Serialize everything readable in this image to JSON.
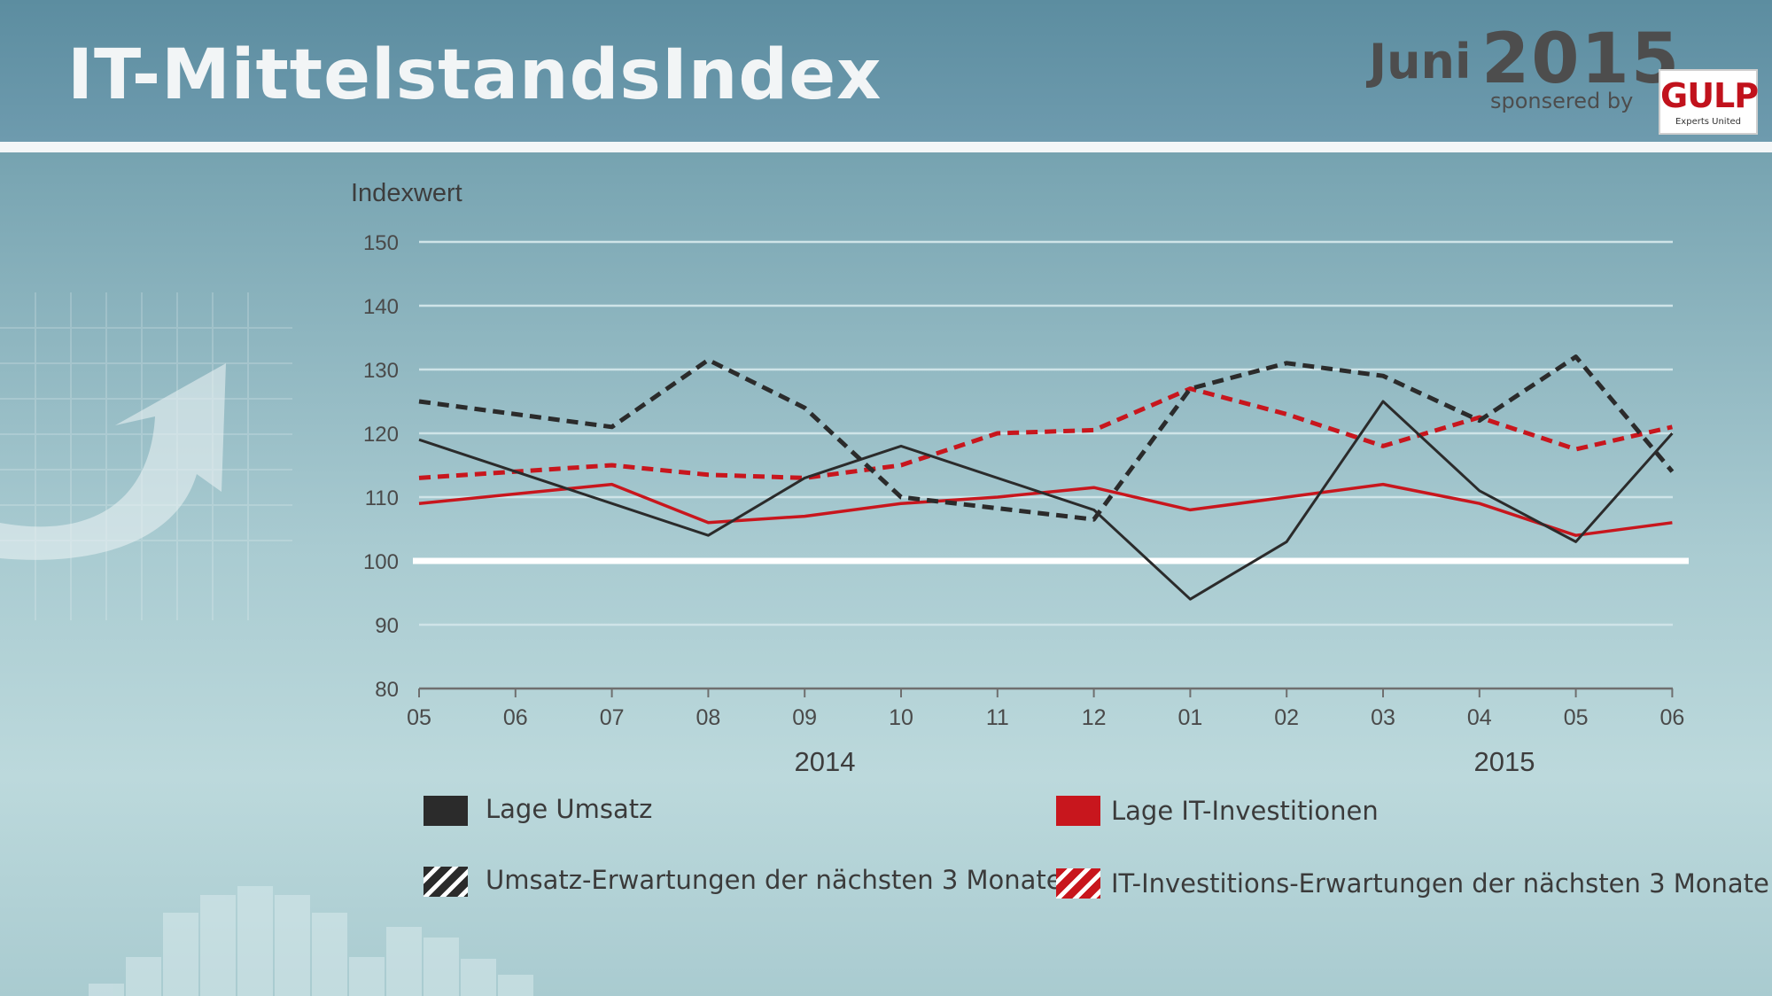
{
  "header": {
    "title": "IT-MittelstandsIndex",
    "month": "Juni",
    "year": "2015",
    "sponsored": "sponsered by",
    "logo_text": "GULP",
    "logo_tagline": "Experts United"
  },
  "colors": {
    "black_series": "#2b2b2b",
    "red_series": "#c8161d",
    "baseline": "#ffffff"
  },
  "chart_data": {
    "type": "line",
    "ylabel": "Indexwert",
    "ylim": [
      80,
      150
    ],
    "yticks": [
      80,
      90,
      100,
      110,
      120,
      130,
      140,
      150
    ],
    "x": [
      "05",
      "06",
      "07",
      "08",
      "09",
      "10",
      "11",
      "12",
      "01",
      "02",
      "03",
      "04",
      "05",
      "06"
    ],
    "x_groups": [
      {
        "label": "2014",
        "from": "05",
        "to": "12"
      },
      {
        "label": "2015",
        "from": "01",
        "to": "06"
      }
    ],
    "baseline": 100,
    "grid": true,
    "legend_position": "bottom",
    "series": [
      {
        "name": "Lage Umsatz",
        "style": "solid",
        "color": "#2b2b2b",
        "values": [
          119,
          null,
          109,
          104,
          113,
          118,
          null,
          108,
          94,
          103,
          125,
          111,
          103,
          120
        ]
      },
      {
        "name": "Lage IT-Investitionen",
        "style": "solid",
        "color": "#c8161d",
        "values": [
          109,
          null,
          112,
          106,
          107,
          109,
          110,
          111.5,
          108,
          110,
          112,
          109,
          104,
          106
        ]
      },
      {
        "name": "Umsatz-Erwartungen der nächsten 3 Monate",
        "style": "dashed",
        "color": "#2b2b2b",
        "values": [
          125,
          null,
          121,
          131.5,
          124,
          110,
          null,
          106.5,
          127,
          131,
          129,
          122,
          132,
          114
        ]
      },
      {
        "name": "IT-Investitions-Erwartungen der nächsten 3 Monate",
        "style": "dashed",
        "color": "#c8161d",
        "values": [
          113,
          null,
          115,
          113.5,
          113,
          115,
          120,
          120.5,
          127,
          123,
          118,
          122.5,
          117.5,
          121
        ]
      }
    ]
  }
}
